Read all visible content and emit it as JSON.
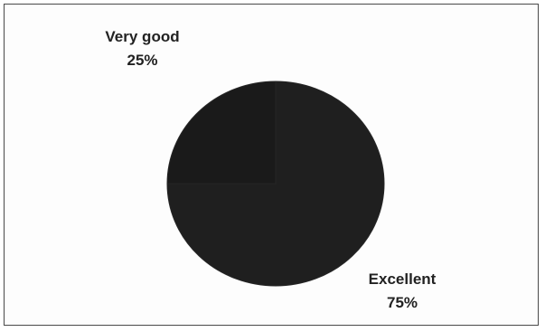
{
  "chart_data": {
    "type": "pie",
    "categories": [
      "Very good",
      "Excellent"
    ],
    "values": [
      25,
      75
    ],
    "slices": [
      {
        "label": "Very good",
        "value_label": "25%",
        "value": 25
      },
      {
        "label": "Excellent",
        "value_label": "75%",
        "value": 75
      }
    ],
    "colors": [
      "#1a1a1a",
      "#1f1f1f"
    ],
    "legend": "none",
    "title": ""
  }
}
